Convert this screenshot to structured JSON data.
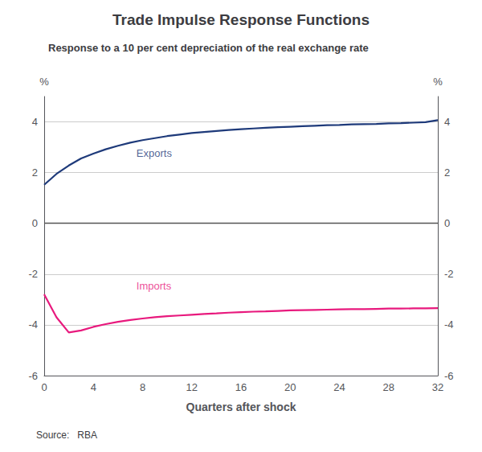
{
  "chart_data": {
    "type": "line",
    "title": "Trade Impulse Response Functions",
    "subtitle": "Response to a 10 per cent depreciation of the real exchange rate",
    "xlabel": "Quarters after shock",
    "ylabel": "%",
    "y2label": "%",
    "source": "Source:   RBA",
    "x": [
      0,
      1,
      2,
      3,
      4,
      5,
      6,
      7,
      8,
      9,
      10,
      11,
      12,
      13,
      14,
      15,
      16,
      17,
      18,
      19,
      20,
      21,
      22,
      23,
      24,
      25,
      26,
      27,
      28,
      29,
      30,
      31,
      32
    ],
    "series": [
      {
        "name": "Exports",
        "color": "#1e3a7a",
        "values": [
          1.52,
          1.95,
          2.28,
          2.56,
          2.75,
          2.92,
          3.06,
          3.18,
          3.28,
          3.36,
          3.44,
          3.5,
          3.56,
          3.6,
          3.64,
          3.68,
          3.71,
          3.74,
          3.77,
          3.79,
          3.81,
          3.83,
          3.85,
          3.87,
          3.88,
          3.9,
          3.91,
          3.92,
          3.94,
          3.95,
          3.97,
          3.99,
          4.07
        ]
      },
      {
        "name": "Imports",
        "color": "#e8197d",
        "values": [
          -2.8,
          -3.7,
          -4.3,
          -4.22,
          -4.08,
          -3.97,
          -3.88,
          -3.81,
          -3.75,
          -3.7,
          -3.66,
          -3.63,
          -3.6,
          -3.57,
          -3.55,
          -3.52,
          -3.5,
          -3.48,
          -3.47,
          -3.45,
          -3.43,
          -3.42,
          -3.41,
          -3.4,
          -3.39,
          -3.38,
          -3.38,
          -3.37,
          -3.36,
          -3.36,
          -3.35,
          -3.35,
          -3.34
        ]
      }
    ],
    "annotations": [
      {
        "text": "Exports",
        "x": 7.5,
        "y": 2.5,
        "color": "#1e3a7a"
      },
      {
        "text": "Imports",
        "x": 7.5,
        "y": -2.75,
        "color": "#e8197d"
      }
    ],
    "xlim": [
      0,
      32
    ],
    "xticks": [
      0,
      4,
      8,
      12,
      16,
      20,
      24,
      28,
      32
    ],
    "ylim": [
      -6,
      5
    ],
    "yticks": [
      -6,
      -4,
      -2,
      0,
      2,
      4
    ],
    "y2lim": [
      -6,
      5
    ],
    "y2ticks": [
      -6,
      -4,
      -2,
      0,
      2,
      4
    ],
    "grid": true
  }
}
